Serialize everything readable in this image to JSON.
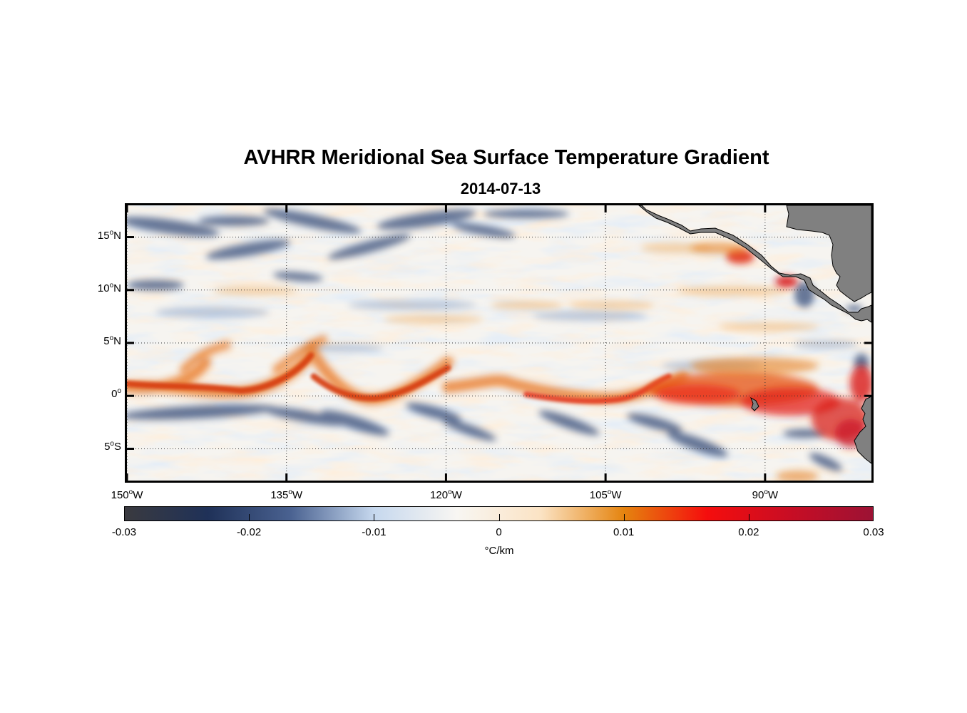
{
  "title": "AVHRR Meridional Sea Surface Temperature Gradient",
  "subtitle": "2014-07-13",
  "map": {
    "region": "Eastern Tropical Pacific",
    "lon_range_deg": [
      -150,
      -80
    ],
    "lat_range_deg": [
      -8,
      18
    ],
    "lat_ticks": [
      {
        "value": 15,
        "num": "15",
        "hemi": "N"
      },
      {
        "value": 10,
        "num": "10",
        "hemi": "N"
      },
      {
        "value": 5,
        "num": "5",
        "hemi": "N"
      },
      {
        "value": 0,
        "num": "0",
        "hemi": ""
      },
      {
        "value": -5,
        "num": "5",
        "hemi": "S"
      }
    ],
    "lon_ticks": [
      {
        "value": -150,
        "num": "150",
        "hemi": "W"
      },
      {
        "value": -135,
        "num": "135",
        "hemi": "W"
      },
      {
        "value": -120,
        "num": "120",
        "hemi": "W"
      },
      {
        "value": -105,
        "num": "105",
        "hemi": "W"
      },
      {
        "value": -90,
        "num": "90",
        "hemi": "W"
      }
    ],
    "degree_symbol": "o",
    "land_color": "#808080",
    "ocean_background": "#f6f4f0"
  },
  "colorbar": {
    "min": -0.03,
    "max": 0.03,
    "ticks": [
      "-0.03",
      "-0.02",
      "-0.01",
      "0",
      "0.01",
      "0.02",
      "0.03"
    ],
    "units": "°C/km",
    "colors": [
      "#3a3a3f",
      "#1f3158",
      "#4a6291",
      "#c6d8ee",
      "#f8f6f2",
      "#fbe3c4",
      "#e5840f",
      "#f50d0d",
      "#c80d24",
      "#9c1234"
    ]
  }
}
